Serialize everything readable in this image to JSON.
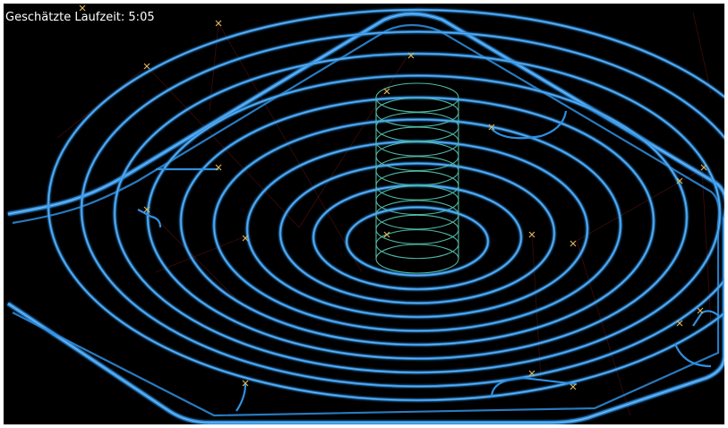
{
  "status": {
    "runtime_label": "Geschätzte Laufzeit: 5:05"
  },
  "colors": {
    "background": "#000000",
    "toolpath": "#2f8fe0",
    "toolpath_highlight": "#cfe8ff",
    "helix": "#4fb7a3",
    "rapid_moves": "#5a1010",
    "plunge_markers": "#d8b25a",
    "label_text": "#ffffff"
  },
  "scene": {
    "outer_boundary": "rounded-rhombus",
    "spiral_rings": 10,
    "helix_turns": 11,
    "plunge_marker_count": 18
  }
}
